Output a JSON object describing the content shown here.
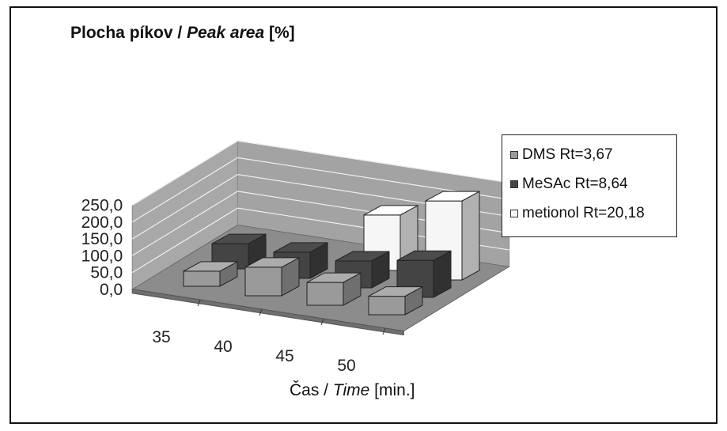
{
  "chart_data": {
    "type": "bar",
    "style": "3d-clustered-column",
    "title_main": "Plocha píkov / ",
    "title_italic": "Peak area",
    "title_unit": " [%]",
    "xlabel_main": "Čas / ",
    "xlabel_italic": "Time",
    "xlabel_unit": " [min.]",
    "categories": [
      "35",
      "40",
      "45",
      "50"
    ],
    "y_ticks": [
      "0,0",
      "50,0",
      "100,0",
      "150,0",
      "200,0",
      "250,0"
    ],
    "ylim": [
      0,
      250
    ],
    "grid": true,
    "legend_position": "right",
    "series": [
      {
        "name": "DMS Rt=3,67",
        "values": [
          45,
          85,
          68,
          55
        ],
        "color": "#9a9a9a"
      },
      {
        "name": "MeSAc Rt=8,64",
        "values": [
          75,
          78,
          80,
          110
        ],
        "color": "#444444"
      },
      {
        "name": "metionol Rt=20,18",
        "values": [
          0,
          0,
          165,
          235
        ],
        "color": "#f6f6f6"
      }
    ]
  }
}
